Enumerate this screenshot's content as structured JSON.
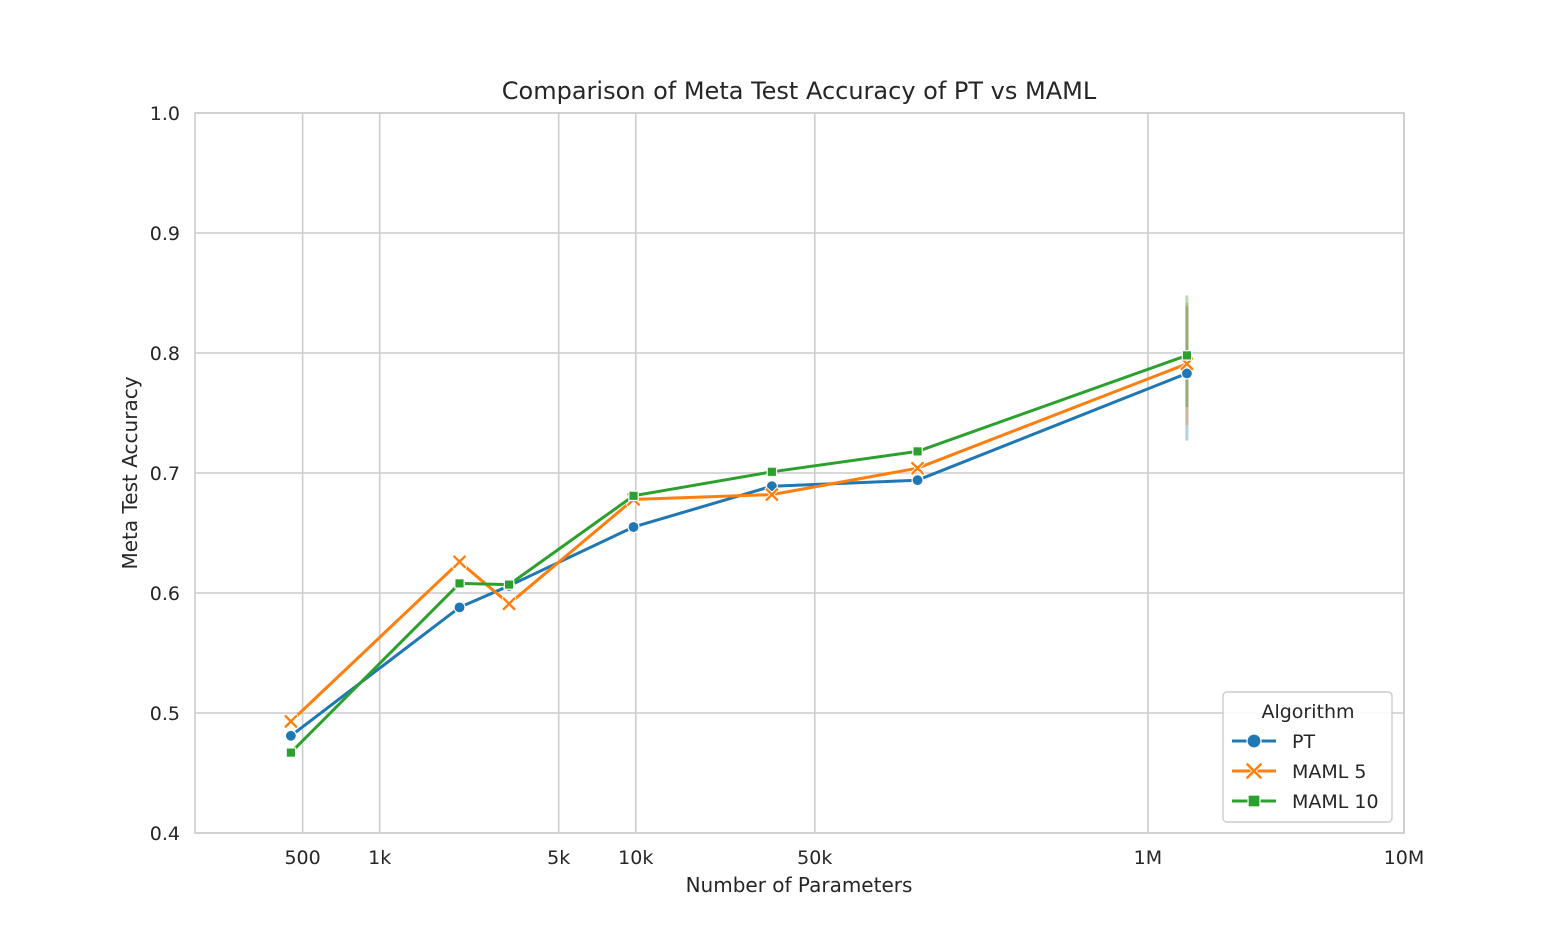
{
  "chart_data": {
    "type": "line",
    "title": "Comparison of Meta Test Accuracy of PT vs MAML",
    "xlabel": "Number of Parameters",
    "ylabel": "Meta Test Accuracy",
    "xscale": "log",
    "xlim": [
      190,
      10000000
    ],
    "ylim": [
      0.4,
      1.0
    ],
    "grid": true,
    "x_ticks": [
      {
        "value": 500,
        "label": "500"
      },
      {
        "value": 1000,
        "label": "1k"
      },
      {
        "value": 5000,
        "label": "5k"
      },
      {
        "value": 10000,
        "label": "10k"
      },
      {
        "value": 50000,
        "label": "50k"
      },
      {
        "value": 1000000,
        "label": "1M"
      },
      {
        "value": 10000000,
        "label": "10M"
      }
    ],
    "y_ticks": [
      {
        "value": 0.4,
        "label": "0.4"
      },
      {
        "value": 0.5,
        "label": "0.5"
      },
      {
        "value": 0.6,
        "label": "0.6"
      },
      {
        "value": 0.7,
        "label": "0.7"
      },
      {
        "value": 0.8,
        "label": "0.8"
      },
      {
        "value": 0.9,
        "label": "0.9"
      },
      {
        "value": 1.0,
        "label": "1.0"
      }
    ],
    "x": [
      450,
      2050,
      3200,
      9800,
      34000,
      126000,
      1420000
    ],
    "series": [
      {
        "name": "PT",
        "color": "#1f77b4",
        "marker": "circle",
        "values": [
          0.481,
          0.588,
          0.606,
          0.655,
          0.689,
          0.694,
          0.783
        ],
        "ci": [
          null,
          null,
          null,
          null,
          null,
          null,
          [
            0.727,
            0.839
          ]
        ]
      },
      {
        "name": "MAML 5",
        "color": "#ff7f0e",
        "marker": "x",
        "values": [
          0.493,
          0.626,
          0.591,
          0.678,
          0.682,
          0.704,
          0.791
        ],
        "ci": [
          null,
          null,
          null,
          null,
          null,
          null,
          [
            0.74,
            0.842
          ]
        ]
      },
      {
        "name": "MAML 10",
        "color": "#2ca02c",
        "marker": "square",
        "values": [
          0.467,
          0.608,
          0.607,
          0.681,
          0.701,
          0.718,
          0.798
        ],
        "ci": [
          null,
          null,
          null,
          null,
          null,
          null,
          [
            0.755,
            0.848
          ]
        ]
      }
    ],
    "legend": {
      "title": "Algorithm",
      "position": "lower-right"
    }
  }
}
